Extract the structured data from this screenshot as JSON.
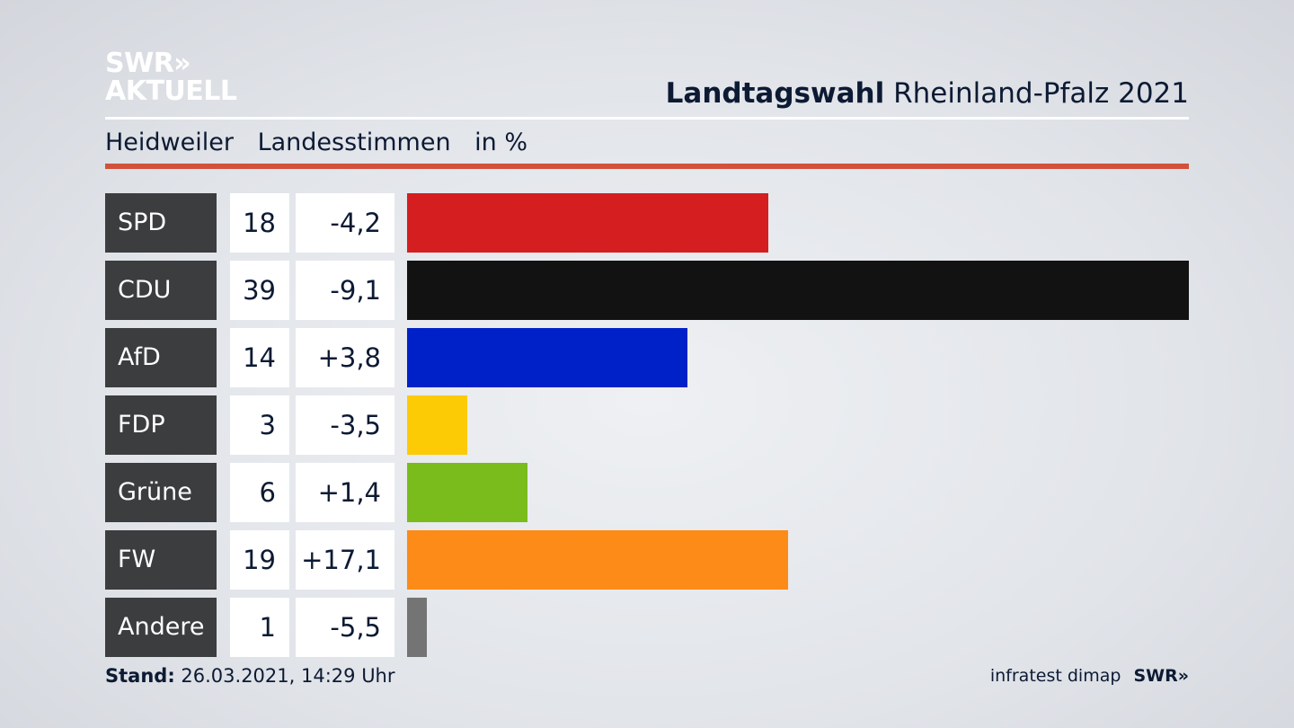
{
  "header": {
    "logo_line1": "SWR»",
    "logo_line2": "AKTUELL",
    "title_bold": "Landtagswahl",
    "title_rest": "Rheinland-Pfalz 2021",
    "subtitle_place": "Heidweiler",
    "subtitle_type": "Landesstimmen",
    "subtitle_unit": "in %"
  },
  "chart_data": {
    "type": "bar",
    "categories": [
      "SPD",
      "CDU",
      "AfD",
      "FDP",
      "Grüne",
      "FW",
      "Andere"
    ],
    "values": [
      18,
      39,
      14,
      3,
      6,
      19,
      1
    ],
    "value_labels": [
      "18",
      "39",
      "14",
      "3",
      "6",
      "19",
      "1"
    ],
    "diff_labels": [
      "-4,2",
      "-9,1",
      "+3,8",
      "-3,5",
      "+1,4",
      "+17,1",
      "-5,5"
    ],
    "colors": [
      "#d51e20",
      "#121212",
      "#0021c8",
      "#fccb05",
      "#79bc1c",
      "#fc8b17",
      "#747474"
    ],
    "xlim": [
      0,
      39
    ]
  },
  "footer": {
    "stand_label": "Stand:",
    "stand_value": "26.03.2021, 14:29 Uhr",
    "source": "infratest dimap",
    "brand": "SWR»"
  }
}
